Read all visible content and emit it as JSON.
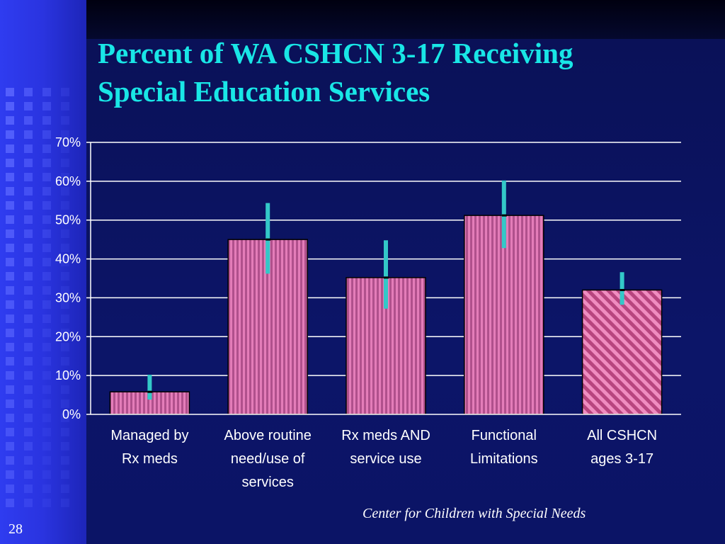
{
  "slide": {
    "title_line1": "Percent of WA CSHCN 3-17 Receiving",
    "title_line2": "Special Education Services",
    "credit": "Center for Children with Special Needs",
    "slide_number": "28"
  },
  "colors": {
    "title": "#19e6e6",
    "bar_base": "#b0508c",
    "bar_highlight": "#f58cc8",
    "hatch_bar_light": "#f08cc0",
    "hatch_bar_dark": "#b8457f",
    "error_bar": "#33c8c8",
    "grid": "#ffffff",
    "text": "#ffffff"
  },
  "chart_data": {
    "type": "bar",
    "title": "Percent of WA CSHCN 3-17 Receiving Special Education Services",
    "xlabel": "",
    "ylabel": "",
    "ylim": [
      0,
      70
    ],
    "yticks": [
      "0%",
      "10%",
      "20%",
      "30%",
      "40%",
      "50%",
      "60%",
      "70%"
    ],
    "grid": true,
    "categories": [
      [
        "Managed by",
        "Rx meds"
      ],
      [
        "Above routine",
        "need/use of",
        "services"
      ],
      [
        "Rx meds AND",
        "service use"
      ],
      [
        "Functional",
        "Limitations"
      ],
      [
        "All CSHCN",
        "ages 3-17"
      ]
    ],
    "values": [
      5.8,
      45,
      35.2,
      51.2,
      32
    ],
    "error_low": [
      3.8,
      36.2,
      27.2,
      42.8,
      28.2
    ],
    "error_high": [
      10.2,
      54.4,
      44.8,
      60.2,
      36.6
    ],
    "pattern": [
      "vertical",
      "vertical",
      "vertical",
      "vertical",
      "hatched"
    ]
  }
}
